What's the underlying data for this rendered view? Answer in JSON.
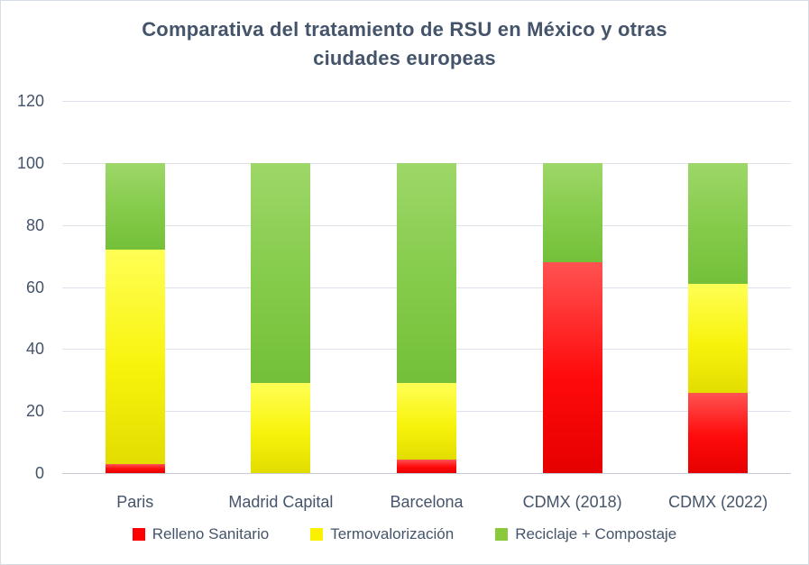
{
  "window": {
    "background": "#FFFFFF",
    "border_color": "#D6DCE4",
    "text_color": "#44546A"
  },
  "chart_data": {
    "type": "bar",
    "stacked": true,
    "title": "Comparativa del tratamiento de RSU en México y otras ciudades europeas",
    "title_lines": [
      "Comparativa del tratamiento de RSU en México y otras",
      "ciudades europeas"
    ],
    "categories": [
      "Paris",
      "Madrid Capital",
      "Barcelona",
      "CDMX (2018)",
      "CDMX (2022)"
    ],
    "series": [
      {
        "name": "Relleno Sanitario",
        "legend_color": "#FF0000",
        "css_class": "seg-red",
        "values": [
          3,
          0,
          4.5,
          68,
          26
        ]
      },
      {
        "name": "Termovalorización",
        "legend_color": "#FAF000",
        "css_class": "seg-yellow",
        "values": [
          69,
          29,
          24.5,
          0,
          35
        ]
      },
      {
        "name": "Reciclaje + Compostaje",
        "legend_color": "#8CC83C",
        "css_class": "seg-green",
        "values": [
          28,
          71,
          71,
          32,
          39
        ]
      }
    ],
    "ylim": [
      0,
      120
    ],
    "yticks": [
      0,
      20,
      40,
      60,
      80,
      100,
      120
    ],
    "grid": true,
    "legend_position": "bottom",
    "grid_color": "#DEE3EB",
    "axis_line_color": "#C6CDD6"
  }
}
